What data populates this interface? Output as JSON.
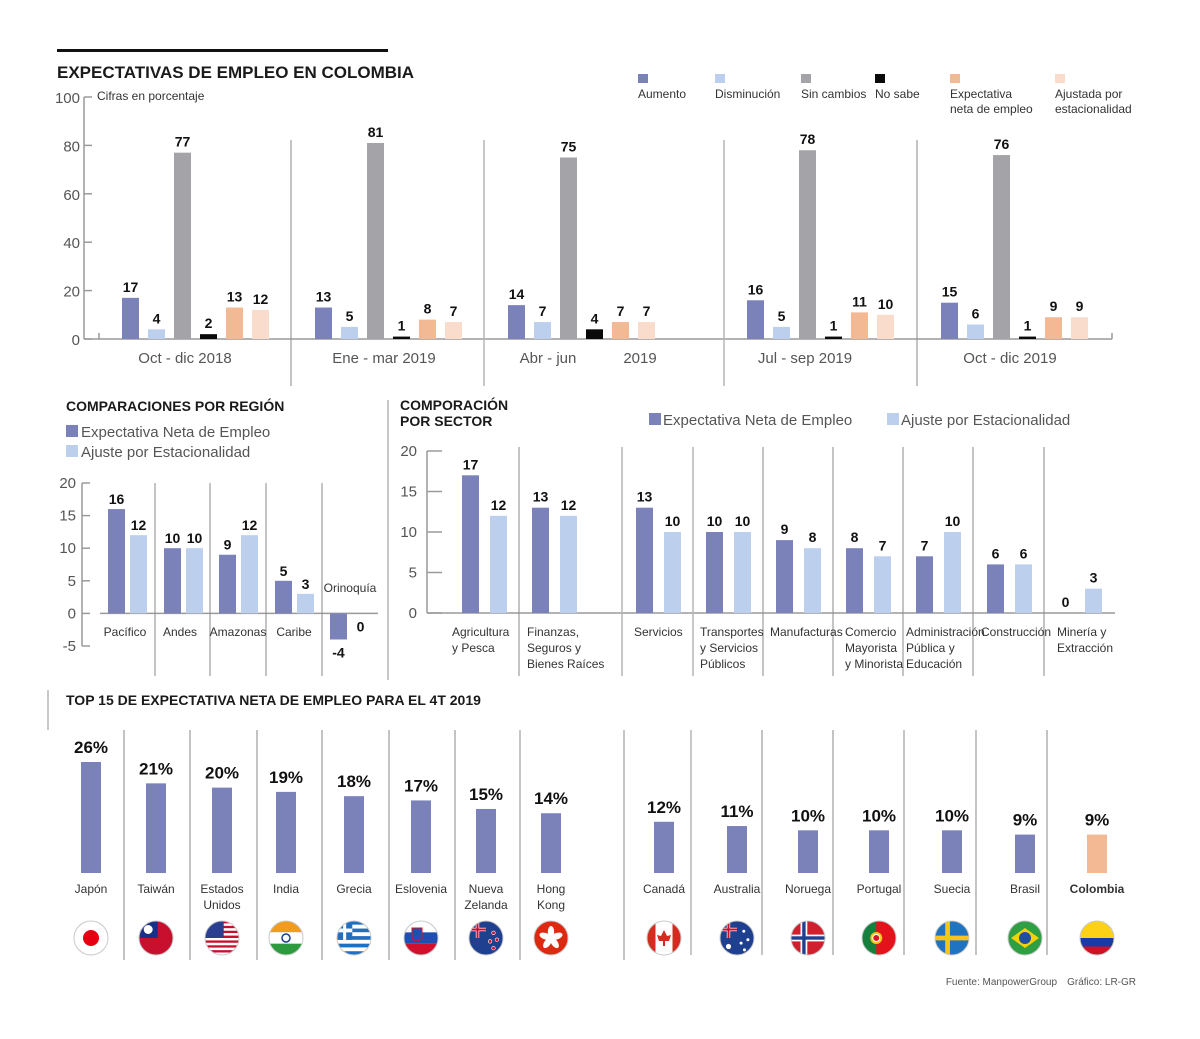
{
  "colors": {
    "aumento": "#7b82ba",
    "disminucion": "#bcd0ee",
    "sin_cambios": "#a3a3a8",
    "no_sabe": "#0a0a0a",
    "expectativa_neta": "#f3b894",
    "ajustada": "#f9dccb",
    "colombia": "#f3b894"
  },
  "chart_data": [
    {
      "id": "expectativas",
      "type": "bar",
      "title": "EXPECTATIVAS DE EMPLEO EN COLOMBIA",
      "subtitle": "Cifras en porcentaje",
      "xlabel": "",
      "ylabel": "",
      "ylim": [
        0,
        100
      ],
      "yticks": [
        "0",
        "20",
        "40",
        "60",
        "80",
        "100"
      ],
      "ytick_values": [
        0,
        20,
        40,
        60,
        80,
        100
      ],
      "grid": false,
      "legend_position": "top-right",
      "categories": [
        "Oct - dic 2018",
        "Ene - mar 2019",
        "Abr - jun",
        "Jul - sep 2019",
        "Oct - dic 2019"
      ],
      "category_extra_label": "2019",
      "series": [
        {
          "key": "aumento",
          "name": "Aumento",
          "values": [
            17,
            13,
            14,
            16,
            15
          ]
        },
        {
          "key": "disminucion",
          "name": "Disminución",
          "values": [
            4,
            5,
            7,
            5,
            6
          ]
        },
        {
          "key": "sin_cambios",
          "name": "Sin cambios",
          "values": [
            77,
            81,
            75,
            78,
            76
          ]
        },
        {
          "key": "no_sabe",
          "name": "No sabe",
          "values": [
            2,
            1,
            4,
            1,
            1
          ]
        },
        {
          "key": "expectativa_neta",
          "name": "Expectativa neta de empleo",
          "name_lines": [
            "Expectativa",
            "neta de empleo"
          ],
          "values": [
            13,
            8,
            7,
            11,
            9
          ]
        },
        {
          "key": "ajustada",
          "name": "Ajustada por estacionalidad",
          "name_lines": [
            "Ajustada por",
            "estacionalidad"
          ],
          "values": [
            12,
            7,
            7,
            10,
            9
          ]
        }
      ]
    },
    {
      "id": "region",
      "type": "bar",
      "title": "COMPARACIONES POR REGIÓN",
      "xlabel": "",
      "ylabel": "",
      "ylim": [
        -5,
        20
      ],
      "yticks": [
        "-5",
        "0",
        "5",
        "10",
        "15",
        "20"
      ],
      "ytick_values": [
        -5,
        0,
        5,
        10,
        15,
        20
      ],
      "grid": false,
      "legend_position": "top-left",
      "categories": [
        "Pacífico",
        "Andes",
        "Amazonas",
        "Caribe",
        "Orinoquía"
      ],
      "series": [
        {
          "key": "aumento",
          "name": "Expectativa Neta de Empleo",
          "values": [
            16,
            10,
            9,
            5,
            -4
          ]
        },
        {
          "key": "disminucion",
          "name": "Ajuste por Estacionalidad",
          "values": [
            12,
            10,
            12,
            3,
            0
          ]
        }
      ]
    },
    {
      "id": "sector",
      "type": "bar",
      "title": "COMPORACIÓN POR SECTOR",
      "title_lines": [
        "COMPORACIÓN",
        "POR SECTOR"
      ],
      "xlabel": "",
      "ylabel": "",
      "ylim": [
        0,
        20
      ],
      "yticks": [
        "0",
        "5",
        "10",
        "15",
        "20"
      ],
      "ytick_values": [
        0,
        5,
        10,
        15,
        20
      ],
      "grid": false,
      "legend_position": "top",
      "categories": [
        "Agricultura y Pesca",
        "Finanzas, Seguros y Bienes Raíces",
        "Servicios",
        "Transportes y Servicios Públicos",
        "Manufacturas",
        "Comercio Mayorista y Minorista",
        "Administración Pública y Educación",
        "Construcción",
        "Minería y Extracción"
      ],
      "category_lines": [
        [
          "Agricultura",
          "y Pesca"
        ],
        [
          "Finanzas,",
          "Seguros y",
          "Bienes Raíces"
        ],
        [
          "Servicios"
        ],
        [
          "Transportes",
          "y Servicios",
          "Públicos"
        ],
        [
          "Manufacturas"
        ],
        [
          "Comercio",
          "Mayorista",
          "y Minorista"
        ],
        [
          "Administración",
          "Pública y",
          "Educación"
        ],
        [
          "Construcción"
        ],
        [
          "Minería y",
          "Extracción"
        ]
      ],
      "series": [
        {
          "key": "aumento",
          "name": "Expectativa Neta de Empleo",
          "values": [
            17,
            13,
            13,
            10,
            9,
            8,
            7,
            6,
            0
          ]
        },
        {
          "key": "disminucion",
          "name": "Ajuste por Estacionalidad",
          "values": [
            12,
            12,
            10,
            10,
            8,
            7,
            10,
            6,
            3
          ]
        }
      ]
    },
    {
      "id": "top15",
      "type": "bar",
      "title": "TOP 15 DE EXPECTATIVA NETA DE EMPLEO PARA EL 4T 2019",
      "xlabel": "",
      "ylabel": "",
      "ylim": [
        0,
        26
      ],
      "grid": false,
      "value_suffix": "%",
      "categories": [
        "Japón",
        "Taiwán",
        "Estados Unidos",
        "India",
        "Grecia",
        "Eslovenia",
        "Nueva Zelanda",
        "Hong Kong",
        "Canadá",
        "Australia",
        "Noruega",
        "Portugal",
        "Suecia",
        "Brasil",
        "Colombia"
      ],
      "category_lines": [
        [
          "Japón"
        ],
        [
          "Taiwán"
        ],
        [
          "Estados",
          "Unidos"
        ],
        [
          "India"
        ],
        [
          "Grecia"
        ],
        [
          "Eslovenia"
        ],
        [
          "Nueva",
          "Zelanda"
        ],
        [
          "Hong",
          "Kong"
        ],
        [
          "Canadá"
        ],
        [
          "Australia"
        ],
        [
          "Noruega"
        ],
        [
          "Portugal"
        ],
        [
          "Suecia"
        ],
        [
          "Brasil"
        ],
        [
          "Colombia"
        ]
      ],
      "flags": [
        "japan-flag-icon",
        "taiwan-flag-icon",
        "usa-flag-icon",
        "india-flag-icon",
        "greece-flag-icon",
        "slovenia-flag-icon",
        "new-zealand-flag-icon",
        "hong-kong-flag-icon",
        "canada-flag-icon",
        "australia-flag-icon",
        "norway-flag-icon",
        "portugal-flag-icon",
        "sweden-flag-icon",
        "brazil-flag-icon",
        "colombia-flag-icon"
      ],
      "highlight": "Colombia",
      "values": [
        26,
        21,
        20,
        19,
        18,
        17,
        15,
        14,
        12,
        11,
        10,
        10,
        10,
        9,
        9
      ]
    }
  ],
  "footer": {
    "source": "Fuente: ManpowerGroup",
    "credit": "Gráfico: LR-GR"
  }
}
